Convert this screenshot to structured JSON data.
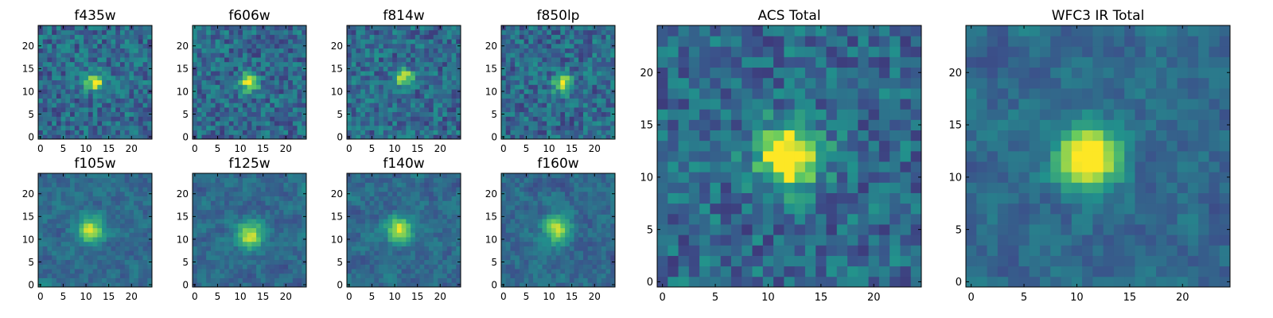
{
  "figure": {
    "colormap": "viridis",
    "colors": [
      "#440154",
      "#3b528b",
      "#21918c",
      "#5ec962",
      "#fde725"
    ]
  },
  "chart_data": [
    {
      "type": "heatmap",
      "title": "f435w",
      "grid_size": 25,
      "xlim": [
        -0.5,
        24.5
      ],
      "ylim": [
        -0.5,
        24.5
      ],
      "xticks": [
        "0",
        "5",
        "10",
        "15",
        "20"
      ],
      "yticks": [
        "0",
        "5",
        "10",
        "15",
        "20"
      ],
      "peak": {
        "x": 12,
        "y": 12
      }
    },
    {
      "type": "heatmap",
      "title": "f606w",
      "grid_size": 25,
      "xlim": [
        -0.5,
        24.5
      ],
      "ylim": [
        -0.5,
        24.5
      ],
      "xticks": [
        "0",
        "5",
        "10",
        "15",
        "20"
      ],
      "yticks": [
        "0",
        "5",
        "10",
        "15",
        "20"
      ],
      "peak": {
        "x": 12,
        "y": 12
      }
    },
    {
      "type": "heatmap",
      "title": "f814w",
      "grid_size": 25,
      "xlim": [
        -0.5,
        24.5
      ],
      "ylim": [
        -0.5,
        24.5
      ],
      "xticks": [
        "0",
        "5",
        "10",
        "15",
        "20"
      ],
      "yticks": [
        "0",
        "5",
        "10",
        "15",
        "20"
      ],
      "peak": {
        "x": 12,
        "y": 13
      }
    },
    {
      "type": "heatmap",
      "title": "f850lp",
      "grid_size": 25,
      "xlim": [
        -0.5,
        24.5
      ],
      "ylim": [
        -0.5,
        24.5
      ],
      "xticks": [
        "0",
        "5",
        "10",
        "15",
        "20"
      ],
      "yticks": [
        "0",
        "5",
        "10",
        "15",
        "20"
      ],
      "peak": {
        "x": 13,
        "y": 12
      }
    },
    {
      "type": "heatmap",
      "title": "f105w",
      "grid_size": 25,
      "xlim": [
        -0.5,
        24.5
      ],
      "ylim": [
        -0.5,
        24.5
      ],
      "xticks": [
        "0",
        "5",
        "10",
        "15",
        "20"
      ],
      "yticks": [
        "0",
        "5",
        "10",
        "15",
        "20"
      ],
      "peak": {
        "x": 11,
        "y": 12
      }
    },
    {
      "type": "heatmap",
      "title": "f125w",
      "grid_size": 25,
      "xlim": [
        -0.5,
        24.5
      ],
      "ylim": [
        -0.5,
        24.5
      ],
      "xticks": [
        "0",
        "5",
        "10",
        "15",
        "20"
      ],
      "yticks": [
        "0",
        "5",
        "10",
        "15",
        "20"
      ],
      "peak": {
        "x": 12,
        "y": 11
      }
    },
    {
      "type": "heatmap",
      "title": "f140w",
      "grid_size": 25,
      "xlim": [
        -0.5,
        24.5
      ],
      "ylim": [
        -0.5,
        24.5
      ],
      "xticks": [
        "0",
        "5",
        "10",
        "15",
        "20"
      ],
      "yticks": [
        "0",
        "5",
        "10",
        "15",
        "20"
      ],
      "peak": {
        "x": 11,
        "y": 12
      }
    },
    {
      "type": "heatmap",
      "title": "f160w",
      "grid_size": 25,
      "xlim": [
        -0.5,
        24.5
      ],
      "ylim": [
        -0.5,
        24.5
      ],
      "xticks": [
        "0",
        "5",
        "10",
        "15",
        "20"
      ],
      "yticks": [
        "0",
        "5",
        "10",
        "15",
        "20"
      ],
      "peak": {
        "x": 12,
        "y": 12
      }
    },
    {
      "type": "heatmap",
      "title": "ACS Total",
      "grid_size": 25,
      "xlim": [
        -0.5,
        24.5
      ],
      "ylim": [
        -0.5,
        24.5
      ],
      "xticks": [
        "0",
        "5",
        "10",
        "15",
        "20"
      ],
      "yticks": [
        "0",
        "5",
        "10",
        "15",
        "20"
      ],
      "peak": {
        "x": 12,
        "y": 12
      }
    },
    {
      "type": "heatmap",
      "title": "WFC3 IR Total",
      "grid_size": 25,
      "xlim": [
        -0.5,
        24.5
      ],
      "ylim": [
        -0.5,
        24.5
      ],
      "xticks": [
        "0",
        "5",
        "10",
        "15",
        "20"
      ],
      "yticks": [
        "0",
        "5",
        "10",
        "15",
        "20"
      ],
      "peak": {
        "x": 11,
        "y": 12
      }
    }
  ]
}
